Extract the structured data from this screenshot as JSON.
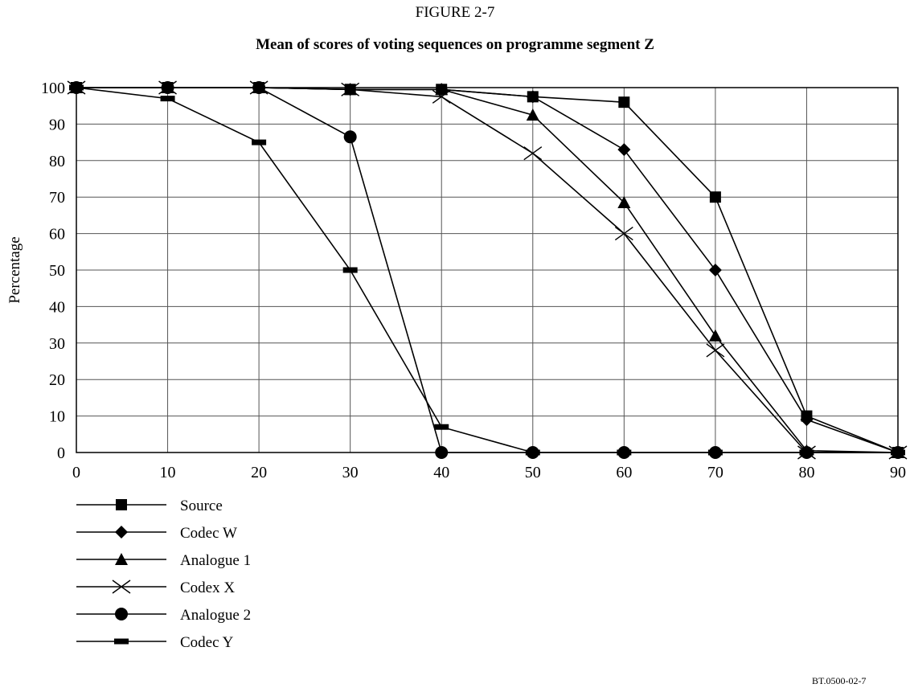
{
  "figure_label": "FIGURE 2-7",
  "reference_code": "BT.0500-02-7",
  "chart_data": {
    "type": "line",
    "title": "Mean of scores of voting sequences on programme segment Z",
    "xlabel": "",
    "ylabel": "Percentage",
    "xlim": [
      0,
      90
    ],
    "ylim": [
      0,
      100
    ],
    "x_ticks": [
      0,
      10,
      20,
      30,
      40,
      50,
      60,
      70,
      80,
      90
    ],
    "y_ticks": [
      0,
      10,
      20,
      30,
      40,
      50,
      60,
      70,
      80,
      90,
      100
    ],
    "grid": true,
    "legend_position": "bottom-left",
    "series": [
      {
        "name": "Source",
        "marker": "square",
        "x": [
          0,
          10,
          20,
          30,
          40,
          50,
          60,
          70,
          80,
          90
        ],
        "y": [
          100,
          100,
          100,
          99.5,
          99.5,
          97.5,
          96,
          70,
          10,
          0
        ]
      },
      {
        "name": "Codec W",
        "marker": "diamond",
        "x": [
          0,
          10,
          20,
          30,
          40,
          50,
          60,
          70,
          80,
          90
        ],
        "y": [
          100,
          100,
          100,
          99.5,
          99.5,
          97.5,
          83,
          50,
          9,
          0
        ]
      },
      {
        "name": "Analogue 1",
        "marker": "triangle",
        "x": [
          0,
          10,
          20,
          30,
          40,
          50,
          60,
          70,
          80,
          90
        ],
        "y": [
          100,
          100,
          100,
          99.5,
          99.5,
          92.5,
          68.5,
          32,
          0.5,
          0
        ]
      },
      {
        "name": "Codex X",
        "marker": "x",
        "x": [
          0,
          10,
          20,
          30,
          40,
          50,
          60,
          70,
          80,
          90
        ],
        "y": [
          100,
          100,
          100,
          99.5,
          97.5,
          82,
          60,
          28,
          0,
          0
        ]
      },
      {
        "name": "Analogue 2",
        "marker": "circle",
        "x": [
          0,
          10,
          20,
          30,
          40,
          50,
          60,
          70,
          80,
          90
        ],
        "y": [
          100,
          100,
          100,
          86.5,
          0,
          0,
          0,
          0,
          0,
          0
        ]
      },
      {
        "name": "Codec Y",
        "marker": "dash",
        "x": [
          0,
          10,
          20,
          30,
          40,
          50,
          60,
          70,
          80,
          90
        ],
        "y": [
          100,
          97,
          85,
          50,
          7,
          0,
          0,
          0,
          0,
          0
        ]
      }
    ]
  }
}
